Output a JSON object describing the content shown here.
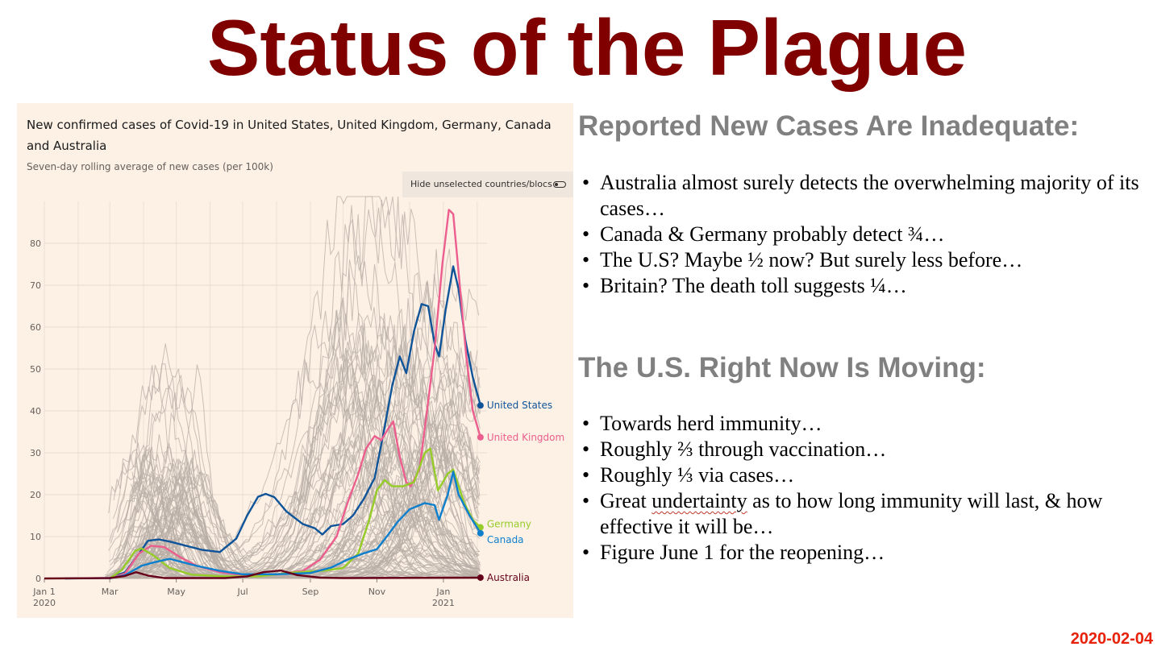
{
  "slide": {
    "title": "Status of the Plague",
    "date": "2020-02-04"
  },
  "chart_data": {
    "type": "line",
    "title": "New confirmed cases of Covid-19 in United States, United Kingdom, Germany, Canada and Australia",
    "subtitle": "Seven-day rolling average of new cases (per 100k)",
    "toggle_label": "Hide unselected countries/blocs",
    "xlabel": "",
    "ylabel": "",
    "ylim": [
      0,
      90
    ],
    "yticks": [
      0,
      10,
      20,
      30,
      40,
      50,
      60,
      70,
      80
    ],
    "xlim": [
      "2020-01-01",
      "2021-02-10"
    ],
    "xticks": [
      {
        "date": "2020-01-01",
        "label": "Jan 1",
        "sublabel": "2020"
      },
      {
        "date": "2020-03-01",
        "label": "Mar",
        "sublabel": ""
      },
      {
        "date": "2020-05-01",
        "label": "May",
        "sublabel": ""
      },
      {
        "date": "2020-07-01",
        "label": "Jul",
        "sublabel": ""
      },
      {
        "date": "2020-09-01",
        "label": "Sep",
        "sublabel": ""
      },
      {
        "date": "2020-11-01",
        "label": "Nov",
        "sublabel": ""
      },
      {
        "date": "2021-01-01",
        "label": "Jan",
        "sublabel": "2021"
      }
    ],
    "grid": true,
    "background_series": "other countries shown in grey",
    "series": [
      {
        "name": "United States",
        "color": "#0f5499",
        "end_value": 41.3,
        "points": [
          [
            "2020-01-20",
            0
          ],
          [
            "2020-03-01",
            0.1
          ],
          [
            "2020-03-15",
            1.5
          ],
          [
            "2020-03-28",
            6
          ],
          [
            "2020-04-05",
            9
          ],
          [
            "2020-04-15",
            9.3
          ],
          [
            "2020-04-25",
            8.8
          ],
          [
            "2020-05-10",
            7.8
          ],
          [
            "2020-05-25",
            6.8
          ],
          [
            "2020-06-10",
            6.3
          ],
          [
            "2020-06-25",
            9.5
          ],
          [
            "2020-07-05",
            15
          ],
          [
            "2020-07-15",
            19.5
          ],
          [
            "2020-07-22",
            20.2
          ],
          [
            "2020-07-30",
            19.4
          ],
          [
            "2020-08-10",
            16
          ],
          [
            "2020-08-25",
            13
          ],
          [
            "2020-09-05",
            12
          ],
          [
            "2020-09-12",
            10.5
          ],
          [
            "2020-09-20",
            12.5
          ],
          [
            "2020-10-01",
            13
          ],
          [
            "2020-10-10",
            15
          ],
          [
            "2020-10-20",
            19
          ],
          [
            "2020-10-30",
            24
          ],
          [
            "2020-11-08",
            36
          ],
          [
            "2020-11-15",
            46
          ],
          [
            "2020-11-22",
            53
          ],
          [
            "2020-11-28",
            49
          ],
          [
            "2020-12-05",
            59
          ],
          [
            "2020-12-12",
            65.5
          ],
          [
            "2020-12-18",
            65
          ],
          [
            "2020-12-24",
            56
          ],
          [
            "2020-12-28",
            53
          ],
          [
            "2021-01-03",
            64
          ],
          [
            "2021-01-10",
            74.5
          ],
          [
            "2021-01-15",
            69
          ],
          [
            "2021-01-21",
            57
          ],
          [
            "2021-01-28",
            48
          ],
          [
            "2021-02-04",
            41.3
          ]
        ]
      },
      {
        "name": "United Kingdom",
        "color": "#eb5e8d",
        "end_value": 33.7,
        "points": [
          [
            "2020-03-01",
            0
          ],
          [
            "2020-03-15",
            1.2
          ],
          [
            "2020-03-28",
            6
          ],
          [
            "2020-04-08",
            7.8
          ],
          [
            "2020-04-20",
            7.5
          ],
          [
            "2020-05-05",
            5
          ],
          [
            "2020-05-20",
            3
          ],
          [
            "2020-06-10",
            1.5
          ],
          [
            "2020-07-01",
            0.8
          ],
          [
            "2020-08-01",
            1
          ],
          [
            "2020-08-25",
            1.8
          ],
          [
            "2020-09-10",
            4.5
          ],
          [
            "2020-09-25",
            10
          ],
          [
            "2020-10-05",
            18
          ],
          [
            "2020-10-15",
            25
          ],
          [
            "2020-10-22",
            31
          ],
          [
            "2020-10-30",
            34
          ],
          [
            "2020-11-05",
            33
          ],
          [
            "2020-11-12",
            36
          ],
          [
            "2020-11-16",
            37.5
          ],
          [
            "2020-11-22",
            29
          ],
          [
            "2020-11-28",
            23
          ],
          [
            "2020-12-02",
            22
          ],
          [
            "2020-12-10",
            26
          ],
          [
            "2020-12-17",
            40
          ],
          [
            "2020-12-24",
            55
          ],
          [
            "2020-12-31",
            75
          ],
          [
            "2021-01-06",
            88
          ],
          [
            "2021-01-10",
            87
          ],
          [
            "2021-01-16",
            70
          ],
          [
            "2021-01-22",
            53
          ],
          [
            "2021-01-28",
            40
          ],
          [
            "2021-02-04",
            33.7
          ]
        ]
      },
      {
        "name": "Germany",
        "color": "#96cc28",
        "end_value": 12.2,
        "points": [
          [
            "2020-03-01",
            0
          ],
          [
            "2020-03-12",
            2
          ],
          [
            "2020-03-24",
            6.5
          ],
          [
            "2020-03-30",
            7.2
          ],
          [
            "2020-04-10",
            5.5
          ],
          [
            "2020-04-25",
            2.5
          ],
          [
            "2020-05-15",
            0.9
          ],
          [
            "2020-06-15",
            0.5
          ],
          [
            "2020-07-15",
            0.5
          ],
          [
            "2020-08-15",
            1.4
          ],
          [
            "2020-09-15",
            1.9
          ],
          [
            "2020-10-01",
            2.5
          ],
          [
            "2020-10-15",
            6
          ],
          [
            "2020-10-25",
            14
          ],
          [
            "2020-11-01",
            21
          ],
          [
            "2020-11-08",
            23.5
          ],
          [
            "2020-11-15",
            22
          ],
          [
            "2020-11-25",
            22
          ],
          [
            "2020-12-05",
            23
          ],
          [
            "2020-12-15",
            30
          ],
          [
            "2020-12-20",
            31
          ],
          [
            "2020-12-27",
            21
          ],
          [
            "2021-01-05",
            25
          ],
          [
            "2021-01-10",
            26
          ],
          [
            "2021-01-20",
            18
          ],
          [
            "2021-01-28",
            14
          ],
          [
            "2021-02-04",
            12.2
          ]
        ]
      },
      {
        "name": "Canada",
        "color": "#0d7fcd",
        "end_value": 10.8,
        "points": [
          [
            "2020-03-01",
            0
          ],
          [
            "2020-03-15",
            0.8
          ],
          [
            "2020-03-30",
            3
          ],
          [
            "2020-04-10",
            3.8
          ],
          [
            "2020-04-25",
            4.7
          ],
          [
            "2020-05-05",
            4
          ],
          [
            "2020-05-20",
            3
          ],
          [
            "2020-06-10",
            1.8
          ],
          [
            "2020-07-01",
            1
          ],
          [
            "2020-08-01",
            1
          ],
          [
            "2020-09-01",
            1.3
          ],
          [
            "2020-09-20",
            2.6
          ],
          [
            "2020-10-05",
            4.5
          ],
          [
            "2020-10-20",
            6
          ],
          [
            "2020-11-01",
            7
          ],
          [
            "2020-11-10",
            10
          ],
          [
            "2020-11-20",
            13.5
          ],
          [
            "2020-12-01",
            16.5
          ],
          [
            "2020-12-15",
            18
          ],
          [
            "2020-12-24",
            17.5
          ],
          [
            "2020-12-28",
            14
          ],
          [
            "2021-01-05",
            20
          ],
          [
            "2021-01-10",
            25.5
          ],
          [
            "2021-01-15",
            20
          ],
          [
            "2021-01-25",
            15
          ],
          [
            "2021-02-04",
            10.8
          ]
        ]
      },
      {
        "name": "Australia",
        "color": "#66001a",
        "end_value": 0.2,
        "points": [
          [
            "2020-01-01",
            0
          ],
          [
            "2020-03-01",
            0.1
          ],
          [
            "2020-03-15",
            0.6
          ],
          [
            "2020-03-25",
            1.5
          ],
          [
            "2020-04-05",
            0.7
          ],
          [
            "2020-04-20",
            0.1
          ],
          [
            "2020-06-15",
            0.1
          ],
          [
            "2020-07-05",
            0.5
          ],
          [
            "2020-07-20",
            1.5
          ],
          [
            "2020-08-05",
            1.9
          ],
          [
            "2020-08-20",
            0.8
          ],
          [
            "2020-09-10",
            0.2
          ],
          [
            "2020-10-01",
            0.1
          ],
          [
            "2021-02-04",
            0.2
          ]
        ]
      }
    ]
  },
  "sections": [
    {
      "heading": "Reported New Cases Are Inadequate:",
      "bullets": [
        "Australia almost surely detects the overwhelming majority of its cases…",
        "Canada & Germany probably detect ¾…",
        "The U.S? Maybe ½ now? But surely less before…",
        "Britain? The death toll suggests ¼…"
      ]
    },
    {
      "heading": "The U.S. Right Now Is Moving:",
      "bullets": [
        "Towards herd immunity…",
        "Roughly ⅔ through vaccination…",
        "Roughly ⅓ via cases…",
        "Great undertainty as to how long immunity will last, & how effective it will be…",
        "Figure June 1 for the reopening…"
      ]
    }
  ]
}
